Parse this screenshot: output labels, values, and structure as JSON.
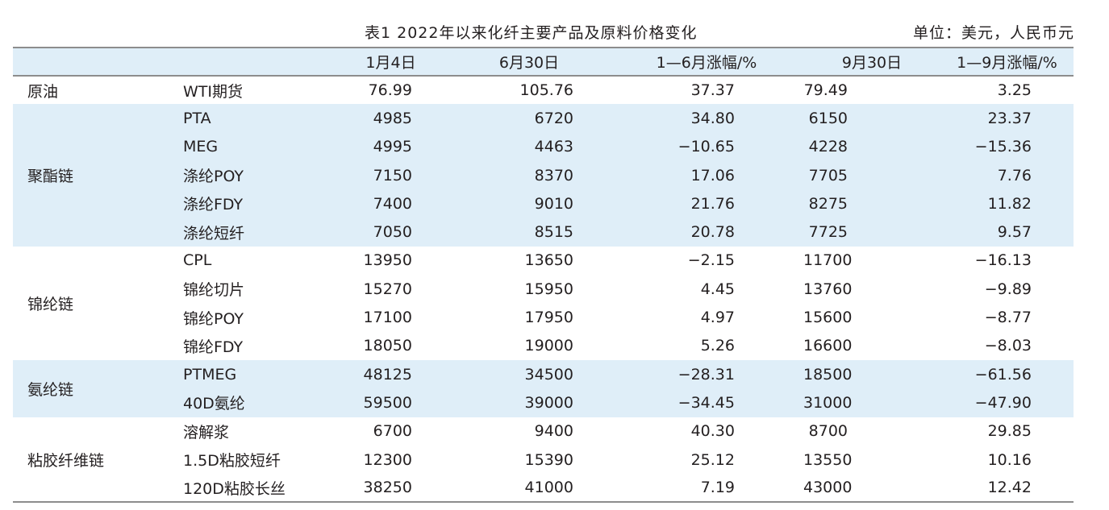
{
  "caption": {
    "title": "表1  2022年以来化纤主要产品及原料价格变化",
    "unit": "单位：美元，人民币元"
  },
  "columns": [
    "",
    "",
    "1月4日",
    "6月30日",
    "1—6月涨幅/%",
    "9月30日",
    "1—9月涨幅/%"
  ],
  "groups": [
    {
      "name": "原油",
      "rows": [
        {
          "item": "WTI期货",
          "values": [
            "76.99",
            "105.76",
            "37.37",
            "79.49",
            "3.25"
          ]
        }
      ]
    },
    {
      "name": "聚酯链",
      "rows": [
        {
          "item": "PTA",
          "values": [
            "4985",
            "6720",
            "34.80",
            "6150",
            "23.37"
          ]
        },
        {
          "item": "MEG",
          "values": [
            "4995",
            "4463",
            "−10.65",
            "4228",
            "−15.36"
          ]
        },
        {
          "item": "涤纶POY",
          "values": [
            "7150",
            "8370",
            "17.06",
            "7705",
            "7.76"
          ]
        },
        {
          "item": "涤纶FDY",
          "values": [
            "7400",
            "9010",
            "21.76",
            "8275",
            "11.82"
          ]
        },
        {
          "item": "涤纶短纤",
          "values": [
            "7050",
            "8515",
            "20.78",
            "7725",
            "9.57"
          ]
        }
      ]
    },
    {
      "name": "锦纶链",
      "rows": [
        {
          "item": "CPL",
          "values": [
            "13950",
            "13650",
            "−2.15",
            "11700",
            "−16.13"
          ]
        },
        {
          "item": "锦纶切片",
          "values": [
            "15270",
            "15950",
            "4.45",
            "13760",
            "−9.89"
          ]
        },
        {
          "item": "锦纶POY",
          "values": [
            "17100",
            "17950",
            "4.97",
            "15600",
            "−8.77"
          ]
        },
        {
          "item": "锦纶FDY",
          "values": [
            "18050",
            "19000",
            "5.26",
            "16600",
            "−8.03"
          ]
        }
      ]
    },
    {
      "name": "氨纶链",
      "rows": [
        {
          "item": "PTMEG",
          "values": [
            "48125",
            "34500",
            "−28.31",
            "18500",
            "−61.56"
          ]
        },
        {
          "item": "40D氨纶",
          "values": [
            "59500",
            "39000",
            "−34.45",
            "31000",
            "−47.90"
          ]
        }
      ]
    },
    {
      "name": "粘胶纤维链",
      "rows": [
        {
          "item": "溶解浆",
          "values": [
            "6700",
            "9400",
            "40.30",
            "8700",
            "29.85"
          ]
        },
        {
          "item": "1.5D粘胶短纤",
          "values": [
            "12300",
            "15390",
            "25.12",
            "13550",
            "10.16"
          ]
        },
        {
          "item": "120D粘胶长丝",
          "values": [
            "38250",
            "41000",
            "7.19",
            "43000",
            "12.42"
          ]
        }
      ]
    }
  ],
  "colors": {
    "band": "#dfeef8",
    "rule": "#8d8d8d",
    "text": "#231f20"
  }
}
